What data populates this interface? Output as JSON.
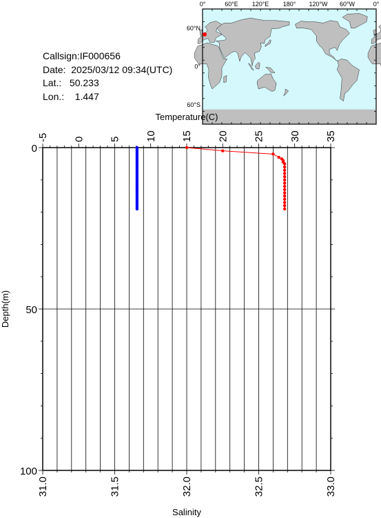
{
  "meta": {
    "callsign_label": "Callsign:",
    "callsign": "IF000656",
    "date_label": "Date:",
    "date": "2025/03/12 09:34(UTC)",
    "lat_label": "Lat.:",
    "lat": "50.233",
    "lon_label": "Lon.:",
    "lon": "1.447"
  },
  "map": {
    "top_labels": [
      "0°",
      "60°E",
      "120°E",
      "180°",
      "120°W",
      "60°W",
      "0°"
    ],
    "left_labels": [
      "60°N",
      "0°",
      "60°S"
    ],
    "ocean_color": "#d4f8fc",
    "land_color": "#bfbfbf",
    "marker_color": "#ff0000",
    "marker_lat": 50.233,
    "marker_lon": 1.447
  },
  "chart_data": {
    "type": "line",
    "title": "",
    "temperature_axis": {
      "label": "Temperature(C)",
      "range": [
        -5,
        35
      ],
      "ticks": [
        "-5",
        "0",
        "5",
        "10",
        "15",
        "20",
        "25",
        "30",
        "35"
      ]
    },
    "salinity_axis": {
      "label": "Salinity",
      "range": [
        31.0,
        33.0
      ],
      "ticks": [
        "31.0",
        "31.5",
        "32.0",
        "32.5",
        "33.0"
      ]
    },
    "depth_axis": {
      "label": "Depth(m)",
      "range": [
        0,
        100
      ],
      "ticks": [
        "0",
        "50",
        "100"
      ]
    },
    "grid": true,
    "series": [
      {
        "axis": "temperature",
        "color": "#0000ff",
        "depth": [
          0,
          0.5,
          1,
          1.5,
          2,
          2.5,
          3,
          3.5,
          4,
          4.5,
          5,
          5.5,
          6,
          6.5,
          7,
          7.5,
          8,
          8.5,
          9,
          9.5,
          10,
          10.5,
          11,
          11.5,
          12,
          12.5,
          13,
          13.5,
          14,
          14.5,
          15,
          15.5,
          16,
          16.5,
          17,
          17.5,
          18,
          18.5,
          19
        ],
        "values": [
          8.1,
          8.1,
          8.1,
          8.1,
          8.1,
          8.1,
          8.1,
          8.1,
          8.1,
          8.1,
          8.1,
          8.1,
          8.1,
          8.1,
          8.1,
          8.1,
          8.1,
          8.1,
          8.1,
          8.1,
          8.1,
          8.1,
          8.1,
          8.1,
          8.1,
          8.1,
          8.1,
          8.1,
          8.1,
          8.1,
          8.1,
          8.1,
          8.1,
          8.1,
          8.1,
          8.1,
          8.1,
          8.1,
          8.1
        ]
      },
      {
        "axis": "salinity",
        "color": "#ff0000",
        "depth": [
          0,
          1,
          2,
          3,
          3.5,
          4,
          4.5,
          5,
          6,
          7,
          8,
          9,
          10,
          11,
          12,
          13,
          14,
          15,
          16,
          17,
          18,
          19
        ],
        "values": [
          32.0,
          32.25,
          32.6,
          32.64,
          32.66,
          32.67,
          32.67,
          32.68,
          32.68,
          32.68,
          32.68,
          32.68,
          32.68,
          32.68,
          32.68,
          32.68,
          32.68,
          32.68,
          32.68,
          32.68,
          32.68,
          32.68
        ]
      }
    ]
  }
}
